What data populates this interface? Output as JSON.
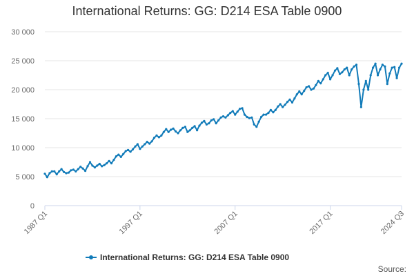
{
  "chart_data": {
    "type": "line",
    "title": "International Returns: GG: D214 ESA Table 0900",
    "series_name": "International Returns: GG: D214 ESA Table 0900",
    "source_label": "Source:",
    "color": "#117bb9",
    "ylim": [
      0,
      30000
    ],
    "y_ticks": [
      {
        "value": 0,
        "label": "0"
      },
      {
        "value": 5000,
        "label": "5 000"
      },
      {
        "value": 10000,
        "label": "10 000"
      },
      {
        "value": 15000,
        "label": "15 000"
      },
      {
        "value": 20000,
        "label": "20 000"
      },
      {
        "value": 25000,
        "label": "25 000"
      },
      {
        "value": 30000,
        "label": "30 000"
      }
    ],
    "x_ticks": [
      {
        "index": 0,
        "label": "1987 Q1"
      },
      {
        "index": 40,
        "label": "1997 Q1"
      },
      {
        "index": 80,
        "label": "2007 Q1"
      },
      {
        "index": 120,
        "label": "2017 Q1"
      },
      {
        "index": 150,
        "label": "2024 Q3"
      }
    ],
    "grid": true,
    "legend_position": "bottom",
    "values": [
      5500,
      4900,
      5600,
      5900,
      5900,
      5400,
      5900,
      6300,
      5800,
      5600,
      5700,
      6100,
      6200,
      5900,
      6300,
      6700,
      6400,
      6000,
      6800,
      7500,
      6900,
      6600,
      6900,
      7200,
      6800,
      7000,
      7300,
      7700,
      7300,
      7900,
      8500,
      8800,
      8400,
      8900,
      9400,
      9600,
      9300,
      9700,
      10200,
      10600,
      9800,
      10200,
      10600,
      11000,
      10700,
      11100,
      11700,
      12100,
      11800,
      12100,
      12700,
      13200,
      12700,
      13100,
      13300,
      12800,
      12500,
      13000,
      13400,
      13600,
      12700,
      13000,
      13400,
      13700,
      13000,
      13800,
      14300,
      14600,
      14000,
      14200,
      14700,
      14900,
      14200,
      14700,
      15200,
      15400,
      15200,
      15600,
      16000,
      16300,
      15700,
      16200,
      16700,
      16800,
      15700,
      15300,
      15100,
      15200,
      14000,
      13600,
      14500,
      15300,
      15700,
      15700,
      16000,
      16500,
      16100,
      16500,
      17100,
      17500,
      17000,
      17400,
      17900,
      18300,
      17800,
      18500,
      19200,
      19700,
      19200,
      19800,
      20400,
      20600,
      20000,
      20200,
      20800,
      21500,
      21100,
      21800,
      22500,
      22900,
      21800,
      22500,
      23300,
      23700,
      22700,
      23000,
      23500,
      23800,
      22500,
      23500,
      24000,
      24300,
      21000,
      17000,
      20000,
      21500,
      20000,
      22500,
      23800,
      24500,
      22500,
      23500,
      24300,
      24000,
      21000,
      22800,
      23800,
      23900,
      22000,
      23800,
      24500
    ]
  }
}
